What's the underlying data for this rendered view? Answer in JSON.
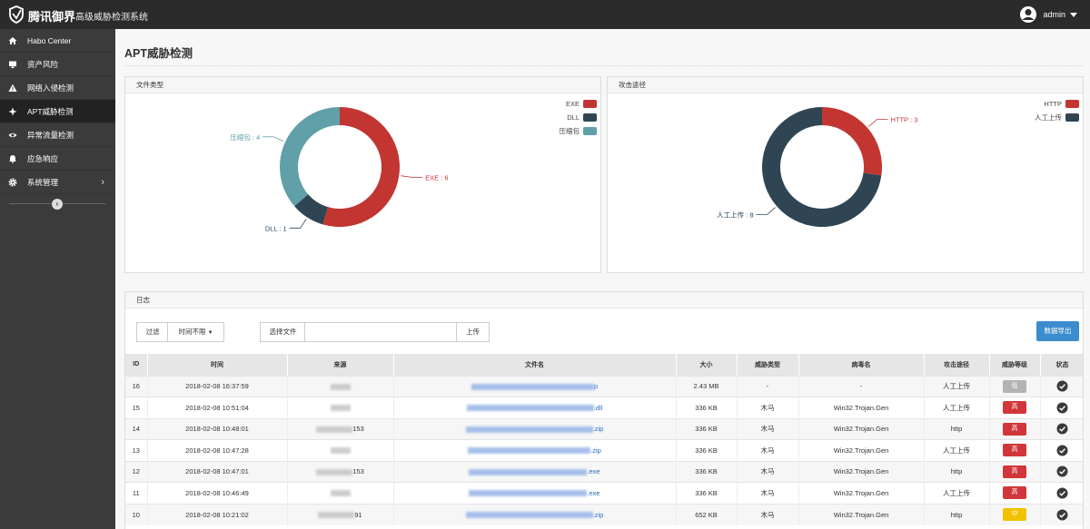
{
  "header": {
    "brand": "腾讯御界",
    "subtitle": "高级威胁检测系统",
    "user": "admin"
  },
  "sidebar": {
    "items": [
      {
        "label": "Habo Center",
        "icon": "home-icon"
      },
      {
        "label": "资产风险",
        "icon": "monitor-icon"
      },
      {
        "label": "网络入侵检测",
        "icon": "warning-icon"
      },
      {
        "label": "APT威胁检测",
        "icon": "crosshair-icon"
      },
      {
        "label": "异常流量检测",
        "icon": "eye-icon"
      },
      {
        "label": "应急响应",
        "icon": "bell-icon"
      },
      {
        "label": "系统管理",
        "icon": "gear-icon"
      }
    ],
    "active_index": 3
  },
  "page": {
    "title": "APT威胁检测"
  },
  "panels": {
    "file_type": {
      "title": "文件类型"
    },
    "attack_path": {
      "title": "攻击途径"
    },
    "log": {
      "title": "日志"
    }
  },
  "chart_data": [
    {
      "type": "pie",
      "title": "文件类型",
      "categories": [
        "EXE",
        "DLL",
        "压缩包"
      ],
      "values": [
        6,
        1,
        4
      ],
      "colors": [
        "#c23531",
        "#2f4554",
        "#61a0a8"
      ],
      "slice_labels": [
        "EXE : 6",
        "DLL : 1",
        "压缩包 : 4"
      ],
      "legend_position": "top-right"
    },
    {
      "type": "pie",
      "title": "攻击途径",
      "categories": [
        "HTTP",
        "人工上传"
      ],
      "values": [
        3,
        8
      ],
      "colors": [
        "#c23531",
        "#2f4554"
      ],
      "slice_labels": [
        "HTTP : 3",
        "人工上传 : 8"
      ],
      "legend_position": "top-right"
    }
  ],
  "log": {
    "filter_label": "过滤",
    "time_select": "时间不限",
    "file_label": "选择文件",
    "file_placeholder": "",
    "upload_label": "上传",
    "export_label": "数据导出",
    "columns": [
      "ID",
      "时间",
      "来源",
      "文件名",
      "大小",
      "威胁类型",
      "病毒名",
      "攻击途径",
      "威胁等级",
      "状态"
    ],
    "rows": [
      {
        "id": "16",
        "time": "2018-02-08 16:37:59",
        "src_tail": "",
        "file_tail": "p",
        "size": "2.43 MB",
        "type": "-",
        "virus": "-",
        "path": "人工上传",
        "level": "低",
        "level_color": "#b3b3b3"
      },
      {
        "id": "15",
        "time": "2018-02-08 10:51:04",
        "src_tail": "",
        "file_tail": ".dll",
        "size": "336 KB",
        "type": "木马",
        "virus": "Win32.Trojan.Gen",
        "path": "人工上传",
        "level": "高",
        "level_color": "#d0363a"
      },
      {
        "id": "14",
        "time": "2018-02-08 10:48:01",
        "src_tail": "153",
        "file_tail": ".zip",
        "size": "336 KB",
        "type": "木马",
        "virus": "Win32.Trojan.Gen",
        "path": "http",
        "level": "高",
        "level_color": "#d0363a"
      },
      {
        "id": "13",
        "time": "2018-02-08 10:47:28",
        "src_tail": "",
        "file_tail": ".zip",
        "size": "336 KB",
        "type": "木马",
        "virus": "Win32.Trojan.Gen",
        "path": "人工上传",
        "level": "高",
        "level_color": "#d0363a"
      },
      {
        "id": "12",
        "time": "2018-02-08 10:47:01",
        "src_tail": "153",
        "file_tail": ".exe",
        "size": "336 KB",
        "type": "木马",
        "virus": "Win32.Trojan.Gen",
        "path": "http",
        "level": "高",
        "level_color": "#d0363a"
      },
      {
        "id": "11",
        "time": "2018-02-08 10:46:49",
        "src_tail": "",
        "file_tail": ".exe",
        "size": "336 KB",
        "type": "木马",
        "virus": "Win32.Trojan.Gen",
        "path": "人工上传",
        "level": "高",
        "level_color": "#d0363a"
      },
      {
        "id": "10",
        "time": "2018-02-08 10:21:02",
        "src_tail": "91",
        "file_tail": ".zip",
        "size": "652 KB",
        "type": "木马",
        "virus": "Win32.Trojan.Gen",
        "path": "http",
        "level": "中",
        "level_color": "#f2c200"
      }
    ]
  }
}
